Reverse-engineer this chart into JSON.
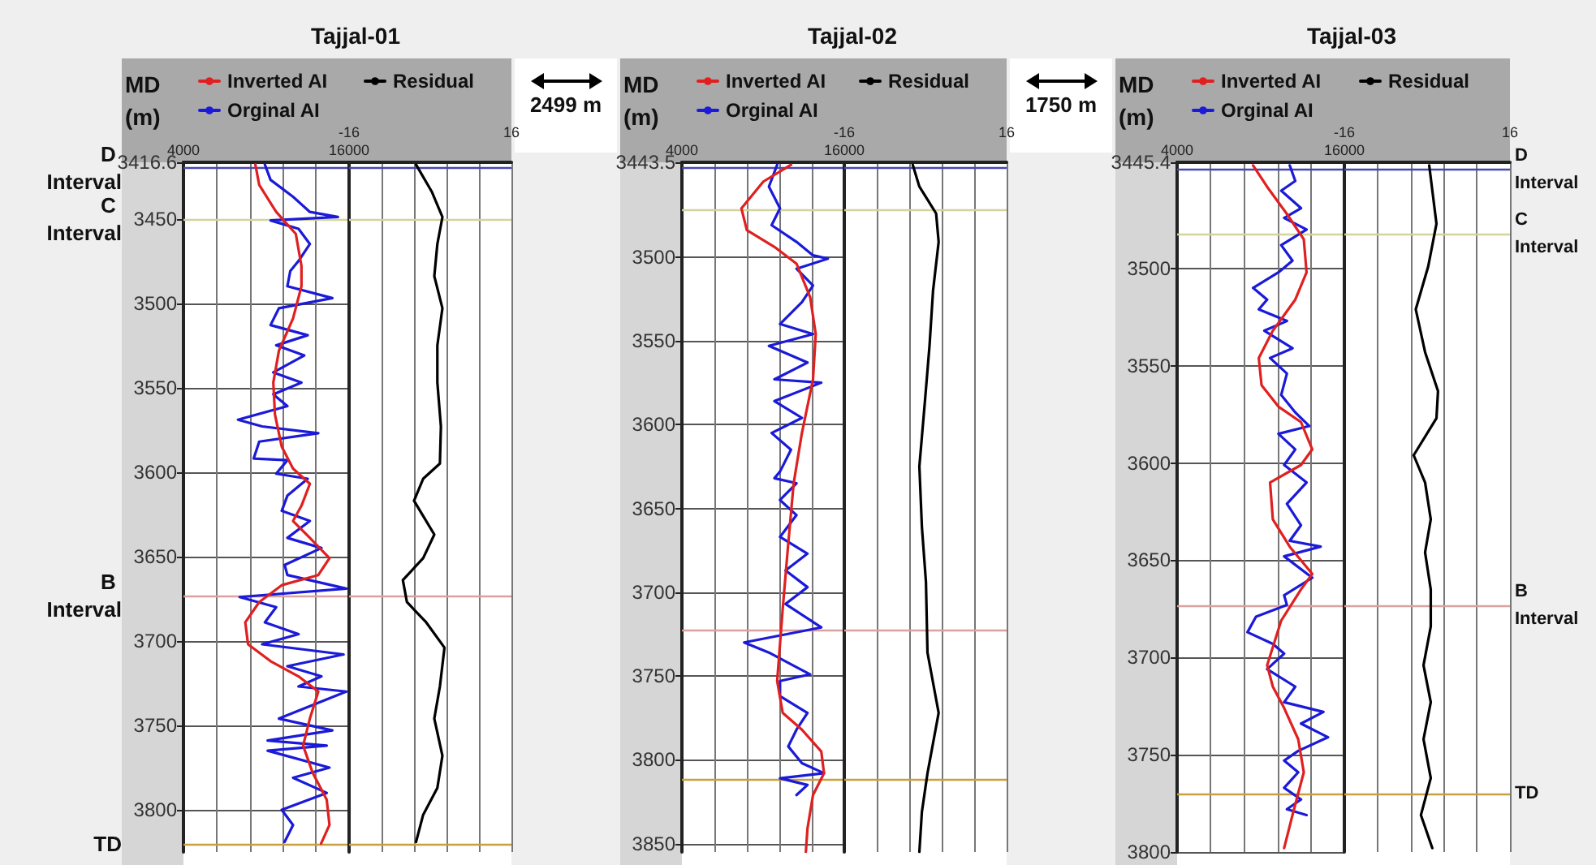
{
  "chart_data": [
    {
      "type": "line",
      "orientation": "horizontal",
      "title": "Tajjal-01",
      "ylabel": "MD (m)",
      "legend": "top",
      "grid": true,
      "xlim": [
        4000,
        16000
      ],
      "xticks": [
        4000,
        {
          "value": 6400,
          "label": null
        },
        {
          "value": 8800,
          "label": null
        },
        {
          "value": 11200,
          "label": null
        },
        {
          "value": 13600,
          "label": null
        },
        16000
      ],
      "ylim": [
        3825,
        3416.6
      ],
      "yticks": [
        3416.6,
        3450,
        3500,
        3550,
        3600,
        3650,
        3700,
        3750,
        3800
      ],
      "ref_lines": [
        {
          "axis": "y",
          "value": 3420,
          "label": "D Interval",
          "color": "#4848b0"
        },
        {
          "axis": "y",
          "value": 3450,
          "label": "C Interval",
          "color": "#d4d49a"
        },
        {
          "axis": "y",
          "value": 3673,
          "label": "B Interval",
          "color": "#dba0a0"
        },
        {
          "axis": "y",
          "value": 3820,
          "label": "TD",
          "color": "#c8a040"
        }
      ],
      "series": [
        {
          "name": "Inverted AI",
          "color": "#e02020",
          "values": [
            9210,
            9490,
            10720,
            12140,
            12550,
            12550,
            11940,
            10920,
            10510,
            10630,
            11120,
            11940,
            13160,
            12550,
            11940,
            13160,
            14580,
            13770,
            11120,
            9490,
            8480,
            8680,
            10310,
            12340,
            13770,
            13160,
            12670,
            13360,
            14380,
            14580,
            13970
          ],
          "x": [
            3418,
            3430,
            3446,
            3459,
            3478,
            3490,
            3509,
            3528,
            3547,
            3566,
            3585,
            3598,
            3607,
            3620,
            3629,
            3639,
            3651,
            3661,
            3667,
            3677,
            3689,
            3702,
            3712,
            3721,
            3730,
            3746,
            3762,
            3778,
            3794,
            3809,
            3820
          ]
        },
        {
          "name": "Orginal AI",
          "color": "#1a1ad8",
          "values": [
            9900,
            10310,
            11940,
            13160,
            15190,
            10310,
            12340,
            13160,
            12340,
            11740,
            11530,
            14790,
            10920,
            10310,
            13000,
            10720,
            12750,
            10510,
            12550,
            10510,
            11530,
            7950,
            9700,
            13770,
            9490,
            9090,
            11530,
            10720,
            13000,
            11530,
            11120,
            13160,
            11530,
            14000,
            11330,
            11530,
            15800,
            8070,
            10720,
            9900,
            12340,
            9700,
            15600,
            11530,
            14000,
            12340,
            15800,
            10920,
            14790,
            10100,
            14380,
            10100,
            14580,
            11940,
            14380,
            11120,
            11940,
            11330
          ],
          "x": [
            3418,
            3427,
            3437,
            3446,
            3449,
            3451,
            3456,
            3465,
            3475,
            3481,
            3490,
            3497,
            3503,
            3513,
            3519,
            3525,
            3531,
            3541,
            3547,
            3554,
            3561,
            3569,
            3573,
            3577,
            3582,
            3592,
            3593,
            3601,
            3604,
            3614,
            3623,
            3629,
            3639,
            3645,
            3655,
            3661,
            3669,
            3674,
            3680,
            3689,
            3696,
            3702,
            3708,
            3715,
            3721,
            3727,
            3730,
            3746,
            3753,
            3759,
            3762,
            3765,
            3775,
            3781,
            3790,
            3800,
            3809,
            3819
          ]
        }
      ]
    },
    {
      "type": "line",
      "orientation": "horizontal",
      "legend": "top",
      "grid": true,
      "tick_labels": "x",
      "xlim": [
        -16,
        16
      ],
      "xticks": [
        -16,
        {
          "value": -9.6,
          "label": null
        },
        {
          "value": -3.2,
          "label": null
        },
        {
          "value": 3.2,
          "label": null
        },
        {
          "value": 9.6,
          "label": null
        },
        16
      ],
      "ylim": [
        3825,
        3416.6
      ],
      "ref_lines": [
        {
          "axis": "y",
          "value": 3420,
          "color": "#4848b0"
        },
        {
          "axis": "y",
          "value": 3450,
          "color": "#d4d49a"
        },
        {
          "axis": "y",
          "value": 3673,
          "color": "#dba0a0"
        },
        {
          "axis": "y",
          "value": 3820,
          "color": "#c8a040"
        }
      ],
      "series": [
        {
          "name": "Residual",
          "color": "#000000",
          "values": [
            -2.8,
            0.3,
            2.4,
            1.4,
            0.8,
            2.4,
            1.4,
            1.4,
            2.1,
            1.9,
            -1.4,
            -3.2,
            -1.4,
            0.8,
            -1.4,
            -5.4,
            -4.6,
            -0.8,
            2.8,
            1.9,
            0.8,
            2.4,
            1.4,
            -1.4,
            -2.8
          ],
          "x": [
            3418,
            3434,
            3449,
            3465,
            3484,
            3503,
            3525,
            3547,
            3573,
            3595,
            3604,
            3617,
            3626,
            3637,
            3651,
            3664,
            3677,
            3689,
            3704,
            3727,
            3746,
            3768,
            3787,
            3803,
            3819
          ]
        }
      ]
    },
    {
      "type": "line",
      "orientation": "horizontal",
      "title": "Tajjal-02",
      "ylabel": "MD (m)",
      "legend": "top",
      "grid": true,
      "annotations": [
        "2499 m"
      ],
      "xlim": [
        4000,
        16000
      ],
      "xticks": [
        4000,
        {
          "value": 6400,
          "label": null
        },
        {
          "value": 8800,
          "label": null
        },
        {
          "value": 11200,
          "label": null
        },
        {
          "value": 13600,
          "label": null
        },
        16000
      ],
      "ylim": [
        3855,
        3443.5
      ],
      "yticks": [
        3443.5,
        3500,
        3550,
        3600,
        3650,
        3700,
        3750,
        3800,
        3850
      ],
      "ref_lines": [
        {
          "axis": "y",
          "value": 3447,
          "color": "#4848b0"
        },
        {
          "axis": "y",
          "value": 3472,
          "color": "#d4d49a"
        },
        {
          "axis": "y",
          "value": 3723,
          "color": "#dba0a0"
        },
        {
          "axis": "y",
          "value": 3812,
          "color": "#c8a040"
        }
      ],
      "series": [
        {
          "name": "Inverted AI",
          "color": "#e02020",
          "values": [
            12060,
            10020,
            8400,
            8800,
            10840,
            12470,
            13480,
            13890,
            13690,
            12870,
            12260,
            11860,
            11450,
            11040,
            11450,
            12870,
            14300,
            14500,
            13690,
            13280,
            13160
          ],
          "x": [
            3445,
            3455,
            3471,
            3484,
            3494,
            3504,
            3524,
            3546,
            3573,
            3605,
            3635,
            3671,
            3710,
            3753,
            3772,
            3782,
            3795,
            3808,
            3821,
            3841,
            3855
          ]
        },
        {
          "name": "Orginal AI",
          "color": "#1a1ad8",
          "values": [
            11040,
            10430,
            11250,
            10630,
            12470,
            13690,
            14790,
            12470,
            13690,
            12870,
            11250,
            13690,
            10430,
            13280,
            10840,
            14300,
            10840,
            12870,
            10630,
            12060,
            11250,
            10840,
            12470,
            11250,
            12470,
            11250,
            13280,
            11660,
            13280,
            11660,
            14300,
            8600,
            10430,
            12060,
            13480,
            11250,
            11250,
            13280,
            12470,
            11860,
            12870,
            14500,
            11250,
            13280,
            12470
          ],
          "x": [
            3445,
            3458,
            3471,
            3481,
            3491,
            3499,
            3501,
            3507,
            3517,
            3527,
            3540,
            3546,
            3553,
            3563,
            3573,
            3575,
            3586,
            3596,
            3605,
            3615,
            3628,
            3632,
            3635,
            3645,
            3654,
            3667,
            3677,
            3687,
            3697,
            3707,
            3721,
            3730,
            3736,
            3743,
            3749,
            3753,
            3762,
            3772,
            3782,
            3792,
            3802,
            3808,
            3811,
            3815,
            3821
          ]
        }
      ]
    },
    {
      "type": "line",
      "orientation": "horizontal",
      "legend": "top",
      "grid": true,
      "tick_labels": "x",
      "xlim": [
        -16,
        16
      ],
      "xticks": [
        -16,
        {
          "value": -9.6,
          "label": null
        },
        {
          "value": -3.2,
          "label": null
        },
        {
          "value": 3.2,
          "label": null
        },
        {
          "value": 9.6,
          "label": null
        },
        16
      ],
      "ylim": [
        3855,
        3443.5
      ],
      "ref_lines": [
        {
          "axis": "y",
          "value": 3447,
          "color": "#4848b0"
        },
        {
          "axis": "y",
          "value": 3472,
          "color": "#d4d49a"
        },
        {
          "axis": "y",
          "value": 3723,
          "color": "#dba0a0"
        },
        {
          "axis": "y",
          "value": 3812,
          "color": "#c8a040"
        }
      ],
      "series": [
        {
          "name": "Residual",
          "color": "#000000",
          "values": [
            -2.5,
            -1.2,
            2.1,
            2.6,
            1.5,
            0.8,
            -0.1,
            -1.2,
            -0.7,
            0.1,
            0.4,
            2.6,
            0.4,
            -0.7,
            -1.2
          ],
          "x": [
            3445,
            3458,
            3474,
            3491,
            3520,
            3553,
            3586,
            3625,
            3661,
            3694,
            3736,
            3772,
            3808,
            3831,
            3855
          ]
        }
      ]
    },
    {
      "type": "line",
      "orientation": "horizontal",
      "title": "Tajjal-03",
      "ylabel": "MD (m)",
      "legend": "top",
      "grid": true,
      "annotations": [
        "1750 m"
      ],
      "xlim": [
        4000,
        16000
      ],
      "xticks": [
        4000,
        {
          "value": 6400,
          "label": null
        },
        {
          "value": 8800,
          "label": null
        },
        {
          "value": 11200,
          "label": null
        },
        {
          "value": 13600,
          "label": null
        },
        16000
      ],
      "ylim": [
        3800,
        3445.4
      ],
      "yticks": [
        3445.4,
        3500,
        3550,
        3600,
        3650,
        3700,
        3750,
        3800
      ],
      "ref_lines": [
        {
          "axis": "y",
          "value": 3449,
          "color": "#4848b0"
        },
        {
          "axis": "y",
          "value": 3482,
          "color": "#d4d49a"
        },
        {
          "axis": "y",
          "value": 3673,
          "color": "#dba0a0"
        },
        {
          "axis": "y",
          "value": 3770,
          "color": "#c8a040"
        }
      ],
      "series": [
        {
          "name": "Inverted AI",
          "color": "#e02020",
          "values": [
            9450,
            10460,
            11880,
            13090,
            13290,
            12480,
            10870,
            9860,
            10060,
            11270,
            12890,
            13700,
            12890,
            10670,
            10870,
            12080,
            13700,
            12890,
            11470,
            10460,
            10870,
            11680,
            12690,
            13090,
            12280,
            11680
          ],
          "x": [
            3447,
            3458,
            3472,
            3485,
            3502,
            3516,
            3532,
            3546,
            3560,
            3571,
            3579,
            3593,
            3601,
            3610,
            3629,
            3643,
            3657,
            3665,
            3681,
            3704,
            3715,
            3726,
            3742,
            3759,
            3781,
            3798
          ]
        },
        {
          "name": "Orginal AI",
          "color": "#1a1ad8",
          "values": [
            12080,
            12480,
            11470,
            12890,
            11680,
            13290,
            11470,
            12280,
            11270,
            9450,
            10460,
            9860,
            11880,
            10260,
            12280,
            10670,
            11880,
            11470,
            12480,
            13490,
            11270,
            12480,
            11680,
            13290,
            11880,
            12890,
            12080,
            14300,
            11680,
            13700,
            11680,
            11880,
            9660,
            9050,
            10870,
            11680,
            10460,
            12480,
            11680,
            14500,
            12890,
            14830,
            12690,
            11680,
            12690,
            11680,
            12890,
            11880,
            13290
          ],
          "x": [
            3447,
            3455,
            3460,
            3469,
            3474,
            3480,
            3488,
            3496,
            3502,
            3510,
            3516,
            3521,
            3527,
            3532,
            3541,
            3546,
            3554,
            3565,
            3574,
            3581,
            3585,
            3593,
            3601,
            3610,
            3621,
            3632,
            3640,
            3643,
            3648,
            3659,
            3668,
            3673,
            3679,
            3687,
            3693,
            3698,
            3706,
            3715,
            3723,
            3728,
            3734,
            3741,
            3748,
            3753,
            3759,
            3767,
            3773,
            3778,
            3781
          ]
        }
      ]
    },
    {
      "type": "line",
      "orientation": "horizontal",
      "legend": "top",
      "grid": true,
      "tick_labels": "x",
      "xlim": [
        -16,
        16
      ],
      "xticks": [
        -16,
        {
          "value": -9.6,
          "label": null
        },
        {
          "value": -3.2,
          "label": null
        },
        {
          "value": 3.2,
          "label": null
        },
        {
          "value": 9.6,
          "label": null
        },
        16
      ],
      "ylim": [
        3800,
        3445.4
      ],
      "ref_lines": [
        {
          "axis": "y",
          "value": 3449,
          "label": "D Interval",
          "color": "#4848b0"
        },
        {
          "axis": "y",
          "value": 3482,
          "label": "C Interval",
          "color": "#d4d49a"
        },
        {
          "axis": "y",
          "value": 3673,
          "label": "B Interval",
          "color": "#dba0a0"
        },
        {
          "axis": "y",
          "value": 3770,
          "label": "TD",
          "color": "#c8a040"
        }
      ],
      "series": [
        {
          "name": "Residual",
          "color": "#000000",
          "values": [
            0.4,
            1.8,
            0.2,
            -2.2,
            -0.4,
            2.1,
            1.8,
            -2.6,
            -0.4,
            0.7,
            -0.4,
            0.7,
            0.7,
            -0.7,
            0.7,
            -0.7,
            0.7,
            -1.2,
            1.0
          ],
          "x": [
            3447,
            3477,
            3499,
            3521,
            3543,
            3563,
            3577,
            3596,
            3610,
            3629,
            3646,
            3665,
            3684,
            3704,
            3723,
            3742,
            3762,
            3781,
            3798
          ]
        }
      ]
    }
  ]
}
